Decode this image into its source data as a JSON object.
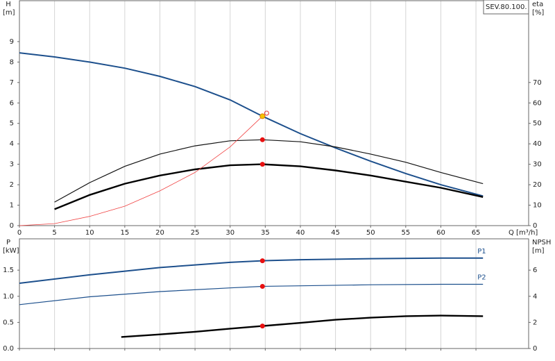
{
  "chart_data": [
    {
      "type": "line",
      "id_label": "SEV.80.100.",
      "ylabel": "H",
      "yunit": "[m]",
      "y2label": "eta",
      "y2unit": "[%]",
      "xlabel": "Q [m³/h]",
      "xlim": [
        0,
        72.5
      ],
      "xticks": [
        0,
        5,
        10,
        15,
        20,
        25,
        30,
        35,
        40,
        45,
        50,
        55,
        60,
        65
      ],
      "xtick_labels": true,
      "ylim": [
        0,
        11
      ],
      "yticks": [
        0,
        1,
        2,
        3,
        4,
        5,
        6,
        7,
        8,
        9
      ],
      "y2lim": [
        0,
        110
      ],
      "y2ticks": [
        0,
        10,
        20,
        30,
        40,
        50,
        60,
        70
      ],
      "grid": true,
      "duty_x": 34.6,
      "request_point": {
        "x": 35.2,
        "y": 5.5,
        "color": "#e83030"
      },
      "series": [
        {
          "axis": "y",
          "color": "#1c4f8c",
          "linewidth": 2,
          "x": [
            0,
            5,
            10,
            15,
            20,
            25,
            30,
            34.6,
            40,
            45,
            50,
            55,
            60,
            66
          ],
          "values": [
            8.45,
            8.25,
            8.0,
            7.7,
            7.3,
            6.8,
            6.15,
            5.35,
            4.5,
            3.8,
            3.15,
            2.55,
            2.0,
            1.45
          ],
          "point": 5.35,
          "point_color": "#f5c400"
        },
        {
          "axis": "y2",
          "color": "#111111",
          "linewidth": 1.2,
          "x": [
            5,
            10,
            15,
            20,
            25,
            30,
            34.6,
            40,
            45,
            50,
            55,
            60,
            66
          ],
          "values": [
            11.5,
            21,
            29,
            35,
            39,
            41.5,
            42,
            41,
            38.5,
            35,
            31,
            26,
            20.5
          ],
          "point": 42,
          "point_color": "#e81010"
        },
        {
          "axis": "y2",
          "color": "#000000",
          "linewidth": 2.4,
          "x": [
            5,
            10,
            15,
            20,
            25,
            30,
            34.6,
            40,
            45,
            50,
            55,
            60,
            66
          ],
          "values": [
            8,
            15,
            20.5,
            24.5,
            27.5,
            29.5,
            30,
            29,
            27,
            24.5,
            21.5,
            18.5,
            14
          ],
          "point": 30,
          "point_color": "#e81010"
        },
        {
          "axis": "y",
          "color": "#f04040",
          "linewidth": 0.8,
          "x": [
            0,
            5,
            10,
            15,
            20,
            25,
            30,
            34.6
          ],
          "values": [
            0,
            0.1,
            0.45,
            0.95,
            1.7,
            2.6,
            3.85,
            5.35
          ]
        }
      ]
    },
    {
      "type": "line",
      "ylabel": "P",
      "yunit": "[kW]",
      "y2label": "NPSH",
      "y2unit": "[m]",
      "xlim": [
        0,
        72.5
      ],
      "xticks": [
        0,
        5,
        10,
        15,
        20,
        25,
        30,
        35,
        40,
        45,
        50,
        55,
        60,
        65
      ],
      "xtick_labels": false,
      "ylim": [
        0,
        2.1
      ],
      "yticks": [
        {
          "value": 0,
          "label": "0.0"
        },
        {
          "value": 0.5,
          "label": "0.5"
        },
        {
          "value": 1,
          "label": "1.0"
        },
        {
          "value": 1.5,
          "label": "1.5"
        }
      ],
      "y2lim": [
        0,
        8.4
      ],
      "y2ticks": [
        0,
        2,
        4,
        6
      ],
      "grid": true,
      "duty_x": 34.6,
      "series": [
        {
          "name": "P1",
          "axis": "y",
          "color": "#1c4f8c",
          "linewidth": 2,
          "x": [
            0,
            10,
            20,
            30,
            34.6,
            40,
            50,
            60,
            66
          ],
          "values": [
            1.25,
            1.41,
            1.55,
            1.65,
            1.68,
            1.7,
            1.72,
            1.73,
            1.73
          ],
          "point": 1.68,
          "point_color": "#e81010"
        },
        {
          "name": "P2",
          "axis": "y",
          "color": "#1c4f8c",
          "linewidth": 1.2,
          "x": [
            0,
            10,
            20,
            30,
            34.6,
            40,
            50,
            60,
            66
          ],
          "values": [
            0.84,
            0.99,
            1.09,
            1.16,
            1.19,
            1.2,
            1.22,
            1.23,
            1.23
          ],
          "point": 1.19,
          "point_color": "#e81010"
        },
        {
          "axis": "y2",
          "color": "#000000",
          "linewidth": 2.4,
          "x": [
            14.5,
            20,
            25,
            30,
            34.6,
            40,
            45,
            50,
            55,
            60,
            66
          ],
          "values": [
            0.88,
            1.08,
            1.28,
            1.52,
            1.72,
            1.96,
            2.2,
            2.36,
            2.48,
            2.52,
            2.48
          ],
          "point": 1.72,
          "point_color": "#e81010"
        }
      ]
    }
  ]
}
